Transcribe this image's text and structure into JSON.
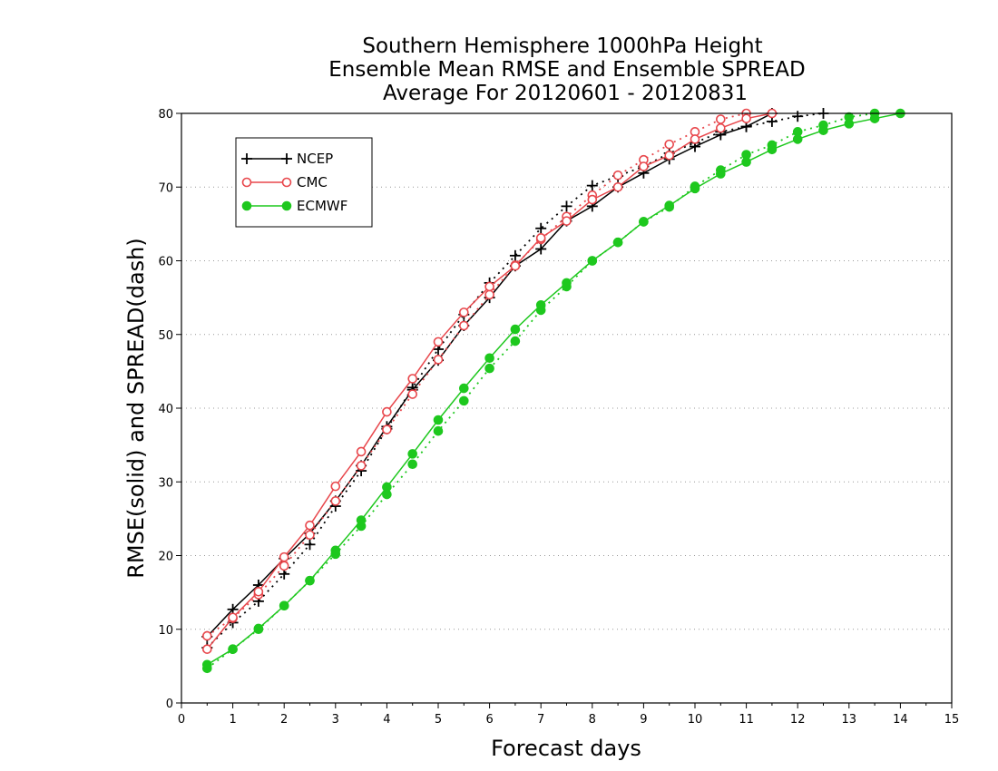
{
  "chart_data": {
    "type": "line",
    "title_lines": [
      "Southern Hemisphere 1000hPa Height",
      "Ensemble Mean RMSE and Ensemble SPREAD",
      "Average For 20120601 - 20120831"
    ],
    "xlabel": "Forecast days",
    "ylabel": "RMSE(solid) and SPREAD(dash)",
    "xlim": [
      0,
      15
    ],
    "ylim": [
      0,
      80
    ],
    "x_ticks": [
      0,
      1,
      2,
      3,
      4,
      5,
      6,
      7,
      8,
      9,
      10,
      11,
      12,
      13,
      14,
      15
    ],
    "y_ticks": [
      0,
      10,
      20,
      30,
      40,
      50,
      60,
      70,
      80
    ],
    "grid": "horizontal dotted",
    "legend_position": "top-left",
    "series": [
      {
        "name": "NCEP",
        "marker": "plus",
        "color": "#000000",
        "rmse": {
          "x": [
            0.5,
            1,
            1.5,
            2,
            2.5,
            3,
            3.5,
            4,
            4.5,
            5,
            5.5,
            6,
            6.5,
            7,
            7.5,
            8,
            8.5,
            9,
            9.5,
            10,
            10.5,
            11,
            11.5
          ],
          "y": [
            9.0,
            12.7,
            16.0,
            19.6,
            23.0,
            27.4,
            32.2,
            37.5,
            42.5,
            46.5,
            51.2,
            55.0,
            59.3,
            61.6,
            65.4,
            67.4,
            70.0,
            71.9,
            73.8,
            75.5,
            77.1,
            78.2,
            80.0
          ]
        },
        "spread": {
          "x": [
            0.5,
            1,
            1.5,
            2,
            2.5,
            3,
            3.5,
            4,
            4.5,
            5,
            5.5,
            6,
            6.5,
            7,
            7.5,
            8,
            8.5,
            9,
            9.5,
            10,
            10.5,
            11,
            11.5,
            12,
            12.5
          ],
          "y": [
            7.5,
            10.9,
            13.8,
            17.5,
            21.5,
            26.7,
            31.5,
            37.2,
            42.8,
            48.0,
            52.7,
            57.0,
            60.7,
            64.4,
            67.4,
            70.2,
            71.5,
            72.8,
            74.6,
            76.0,
            77.5,
            78.2,
            78.9,
            79.6,
            80.0
          ]
        }
      },
      {
        "name": "CMC",
        "marker": "circle",
        "color": "#e8474c",
        "rmse": {
          "x": [
            0.5,
            1,
            1.5,
            2,
            2.5,
            3,
            3.5,
            4,
            4.5,
            5,
            5.5,
            6,
            6.5,
            7,
            7.5,
            8,
            8.5,
            9,
            9.5,
            10,
            10.5,
            11,
            11.5
          ],
          "y": [
            7.3,
            11.6,
            15.1,
            19.8,
            24.1,
            29.4,
            34.1,
            39.5,
            44.0,
            49.0,
            53.0,
            56.5,
            59.3,
            63.1,
            65.4,
            68.3,
            70.0,
            72.8,
            74.3,
            76.5,
            78.0,
            79.3,
            80.0
          ]
        },
        "spread": {
          "x": [
            0.5,
            1,
            1.5,
            2,
            2.5,
            3,
            3.5,
            4,
            4.5,
            5,
            5.5,
            6,
            6.5,
            7,
            7.5,
            8,
            8.5,
            9,
            9.5,
            10,
            10.5,
            11
          ],
          "y": [
            9.1,
            11.5,
            14.7,
            18.6,
            22.8,
            27.4,
            32.2,
            37.1,
            41.9,
            46.6,
            51.2,
            55.4,
            59.4,
            62.9,
            66.0,
            68.9,
            71.6,
            73.7,
            75.8,
            77.5,
            79.2,
            80.0
          ]
        }
      },
      {
        "name": "ECMWF",
        "marker": "filled-circle",
        "color": "#1ec81e",
        "rmse": {
          "x": [
            0.5,
            1,
            1.5,
            2,
            2.5,
            3,
            3.5,
            4,
            4.5,
            5,
            5.5,
            6,
            6.5,
            7,
            7.5,
            8,
            8.5,
            9,
            9.5,
            10,
            10.5,
            11,
            11.5,
            12,
            12.5,
            13,
            13.5,
            14
          ],
          "y": [
            5.2,
            7.3,
            10.1,
            13.2,
            16.6,
            20.7,
            24.8,
            29.3,
            33.8,
            38.4,
            42.7,
            46.8,
            50.7,
            54.0,
            57.0,
            60.0,
            62.5,
            65.3,
            67.5,
            69.8,
            71.8,
            73.4,
            75.1,
            76.5,
            77.7,
            78.6,
            79.3,
            80.0
          ]
        },
        "spread": {
          "x": [
            0.5,
            1,
            1.5,
            2,
            2.5,
            3,
            3.5,
            4,
            4.5,
            5,
            5.5,
            6,
            6.5,
            7,
            7.5,
            8,
            8.5,
            9,
            9.5,
            10,
            10.5,
            11,
            11.5,
            12,
            12.5,
            13,
            13.5
          ],
          "y": [
            4.7,
            7.3,
            10.0,
            13.2,
            16.6,
            20.2,
            24.0,
            28.3,
            32.4,
            36.9,
            41.0,
            45.4,
            49.1,
            53.3,
            56.5,
            60.0,
            62.5,
            65.3,
            67.3,
            70.1,
            72.3,
            74.4,
            75.7,
            77.5,
            78.4,
            79.5,
            80.0
          ]
        }
      }
    ]
  }
}
